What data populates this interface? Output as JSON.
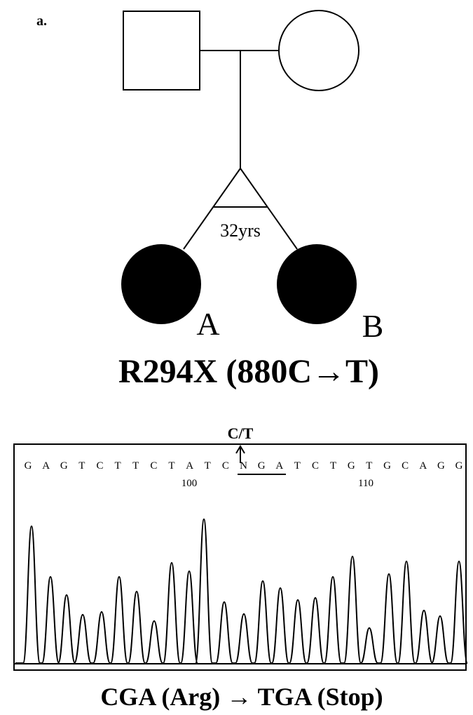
{
  "panel_label": "a.",
  "pedigree": {
    "twin_label": "32yrs",
    "individuals": [
      "A",
      "B"
    ],
    "mutation": "R294X (880C→T)"
  },
  "chromatogram": {
    "variant_label": "C/T",
    "sequence": [
      "G",
      "A",
      "G",
      "T",
      "C",
      "T",
      "T",
      "C",
      "T",
      "A",
      "T",
      "C",
      "N",
      "G",
      "A",
      "T",
      "C",
      "T",
      "G",
      "T",
      "G",
      "C",
      "A",
      "G",
      "G"
    ],
    "position_labels": [
      "100",
      "110"
    ]
  },
  "caption": "CGA (Arg) → TGA (Stop)"
}
